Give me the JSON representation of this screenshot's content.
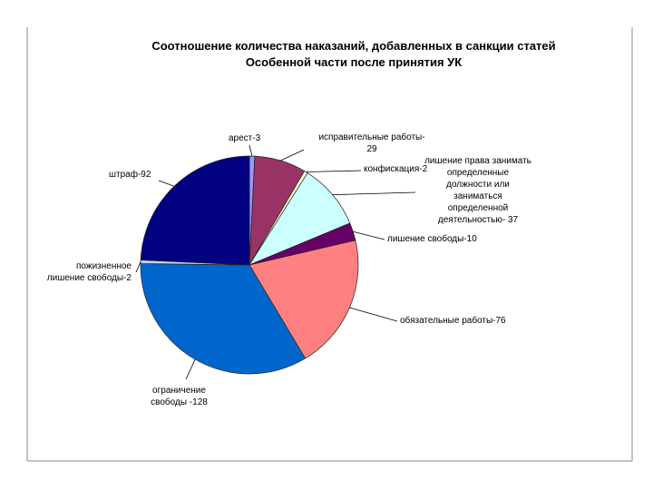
{
  "chart_data": {
    "type": "pie",
    "title": "Соотношение количества наказаний, добавленных в санкции статей\nОсобенной части после принятия УК",
    "values": [
      3,
      29,
      2,
      37,
      10,
      76,
      128,
      2,
      92
    ],
    "value_labels": [
      "арест-3",
      "исправительные работы-\n29",
      "конфискация-2",
      "лишение права занимать\nопределенные\nдолжности или\nзаниматься\nопределенной\nдеятельностью- 37",
      "лишение свободы-10",
      "обязательные работы-76",
      "ограничение\nсвободы -128",
      "пожизненное\nлишение свободы-2",
      "штраф-92"
    ],
    "colors": [
      "#9999ff",
      "#993366",
      "#ffffcc",
      "#ccffff",
      "#660066",
      "#ff8080",
      "#0066cc",
      "#ccccff",
      "#000080"
    ]
  }
}
